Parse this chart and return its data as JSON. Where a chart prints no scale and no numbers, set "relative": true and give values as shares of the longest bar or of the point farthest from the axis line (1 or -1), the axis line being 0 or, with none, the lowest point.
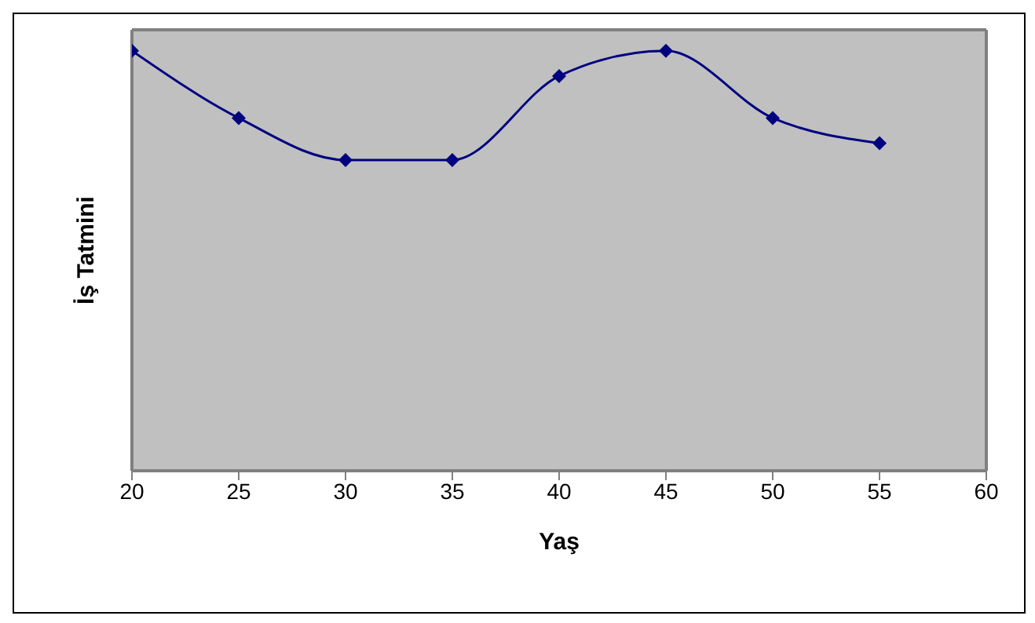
{
  "chart_data": {
    "type": "line",
    "relative": true,
    "xlabel": "Yaş",
    "ylabel": "İş Tatmini",
    "x": [
      20,
      25,
      30,
      35,
      40,
      45,
      50,
      55
    ],
    "series": [
      {
        "color": "#000080",
        "values": [
          1,
          0.84,
          0.74,
          0.74,
          0.94,
          1,
          0.84,
          0.78
        ]
      }
    ],
    "xlim": [
      20,
      60
    ],
    "xticks": [
      20,
      25,
      30,
      35,
      40,
      45,
      50,
      55,
      60
    ],
    "marker": "diamond",
    "line_style": "solid",
    "grid": false,
    "legend": false,
    "tick_labels": "x"
  }
}
